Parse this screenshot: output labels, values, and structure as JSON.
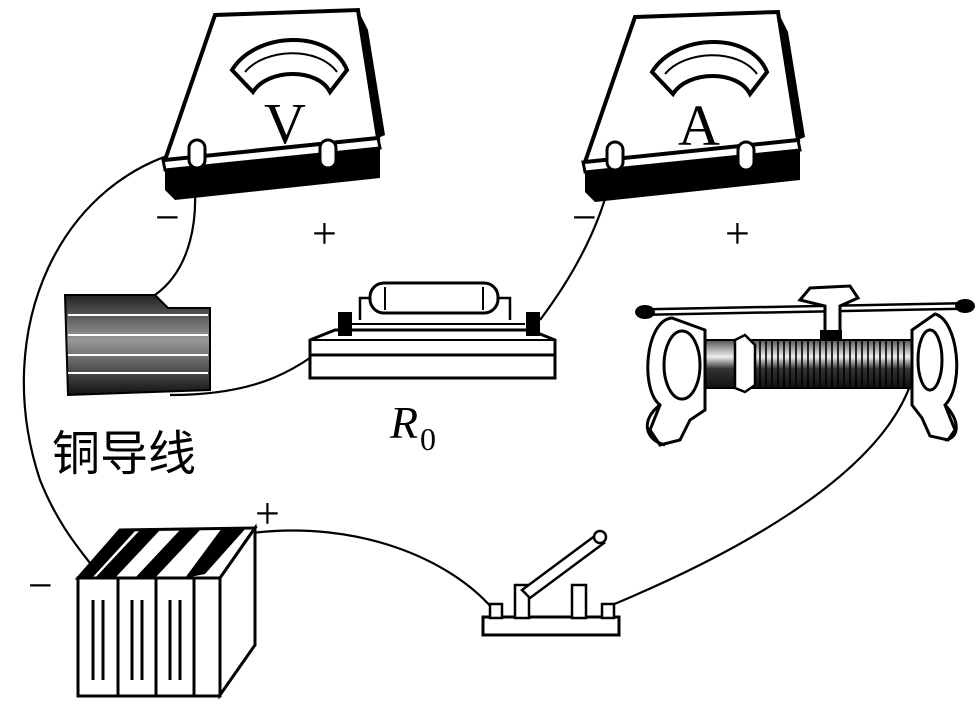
{
  "voltmeter": {
    "symbol": "V",
    "neg": "−",
    "pos": "+"
  },
  "ammeter": {
    "symbol": "A",
    "neg": "−",
    "pos": "+"
  },
  "resistor": {
    "label_main": "R",
    "label_sub": "0"
  },
  "copper_wire": {
    "label": "铜导线"
  },
  "battery": {
    "neg": "−",
    "pos": "+"
  }
}
